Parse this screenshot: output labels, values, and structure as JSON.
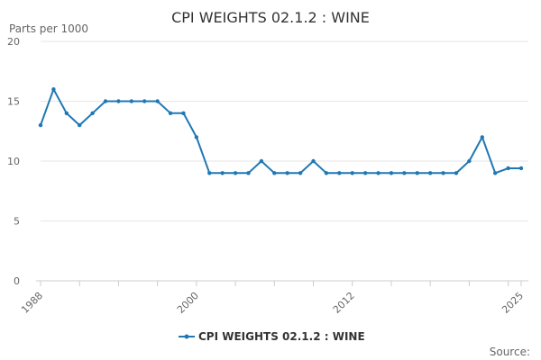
{
  "chart_data": {
    "type": "line",
    "title": "CPI WEIGHTS 02.1.2 : WINE",
    "ylabel": "Parts per 1000",
    "xlabel": "",
    "ylim": [
      0,
      20
    ],
    "yticks": [
      0,
      5,
      10,
      15,
      20
    ],
    "xlim": [
      1988,
      2025
    ],
    "xtick_labels": [
      "1988",
      "2000",
      "2012",
      "2025"
    ],
    "grid": true,
    "legend_position": "bottom",
    "color": "#1f78b4",
    "series": [
      {
        "name": "CPI WEIGHTS 02.1.2 : WINE",
        "x": [
          1988,
          1989,
          1990,
          1991,
          1992,
          1993,
          1994,
          1995,
          1996,
          1997,
          1998,
          1999,
          2000,
          2001,
          2002,
          2003,
          2004,
          2005,
          2006,
          2007,
          2008,
          2009,
          2010,
          2011,
          2012,
          2013,
          2014,
          2015,
          2016,
          2017,
          2018,
          2019,
          2020,
          2021,
          2022,
          2023,
          2024,
          2025
        ],
        "values": [
          13,
          16,
          14,
          13,
          14,
          15,
          15,
          15,
          15,
          15,
          14,
          14,
          12,
          9,
          9,
          9,
          9,
          10,
          9,
          9,
          9,
          10,
          9,
          9,
          9,
          9,
          9,
          9,
          9,
          9,
          9,
          9,
          9,
          10,
          12,
          9,
          9.4,
          9.4
        ]
      }
    ],
    "source_label": "Source:"
  }
}
